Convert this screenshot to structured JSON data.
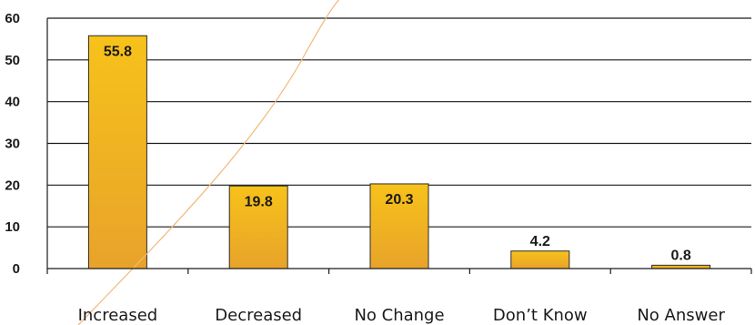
{
  "chart_data": {
    "type": "bar",
    "categories": [
      "Increased",
      "Decreased",
      "No Change",
      "Don’t Know",
      "No Answer"
    ],
    "values": [
      55.8,
      19.8,
      20.3,
      4.2,
      0.8
    ],
    "data_labels": [
      "55.8",
      "19.8",
      "20.3",
      "4.2",
      "0.8"
    ],
    "title": "",
    "xlabel": "",
    "ylabel": "",
    "ylim": [
      0,
      60
    ],
    "yticks": [
      "0",
      "10",
      "20",
      "30",
      "40",
      "50",
      "60"
    ],
    "grid": true,
    "legend": "none"
  },
  "colors": {
    "bar_top": "#f7c21a",
    "bar_bottom": "#e8a32a",
    "bar_stroke": "#2a2a2a",
    "grid": "#1a1a1a",
    "decorative_curve": "#f2b77a"
  }
}
